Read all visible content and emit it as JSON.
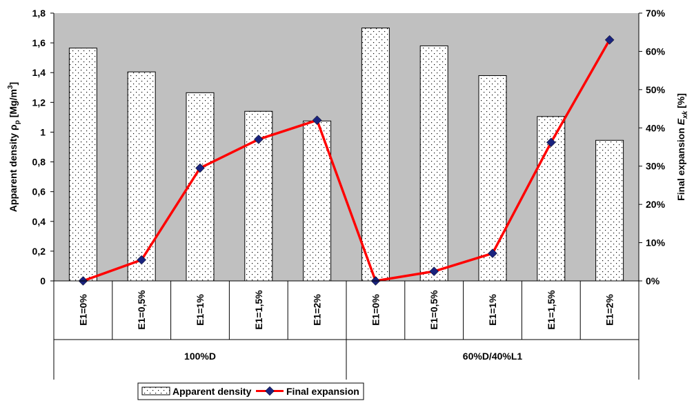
{
  "chart_data": {
    "type": "bar",
    "categories": [
      "E1=0%",
      "E1=0,5%",
      "E1=1%",
      "E1=1,5%",
      "E1=2%",
      "E1=0%",
      "E1=0,5%",
      "E1=1%",
      "E1=1,5%",
      "E1=2%"
    ],
    "groups": [
      {
        "label": "100%D",
        "start": 0,
        "end": 5
      },
      {
        "label": "60%D/40%L1",
        "start": 5,
        "end": 10
      }
    ],
    "series": [
      {
        "name": "Apparent density",
        "kind": "bar",
        "axis": "left",
        "values": [
          1.565,
          1.405,
          1.265,
          1.14,
          1.075,
          1.7,
          1.58,
          1.38,
          1.105,
          0.945
        ]
      },
      {
        "name": "Final expansion",
        "kind": "line",
        "axis": "right",
        "values": [
          0.0,
          5.5,
          29.5,
          37.0,
          42.0,
          0.0,
          2.5,
          7.2,
          36.2,
          63.0
        ],
        "color": "#ff0000",
        "marker_color": "#1a237e"
      }
    ],
    "y_left": {
      "ylim": [
        0,
        1.8
      ],
      "ticks": [
        "0",
        "0,2",
        "0,4",
        "0,6",
        "0,8",
        "1",
        "1,2",
        "1,4",
        "1,6",
        "1,8"
      ],
      "label_main": "Apparent density  ",
      "label_symbol": "ρ",
      "label_sub": "p",
      "label_unit": " [Mg/m",
      "label_sup": "3",
      "label_close": "]"
    },
    "y_right": {
      "ylim": [
        0,
        70
      ],
      "ticks": [
        "0%",
        "10%",
        "20%",
        "30%",
        "40%",
        "50%",
        "60%",
        "70%"
      ],
      "label_main": "Final expansion  ",
      "label_symbol": "E",
      "label_sub": "xk",
      "label_unit": " [%]"
    },
    "plot_background": "#c0c0c0",
    "legend": {
      "position": "bottom",
      "items": [
        "Apparent density",
        "Final expansion"
      ]
    }
  }
}
